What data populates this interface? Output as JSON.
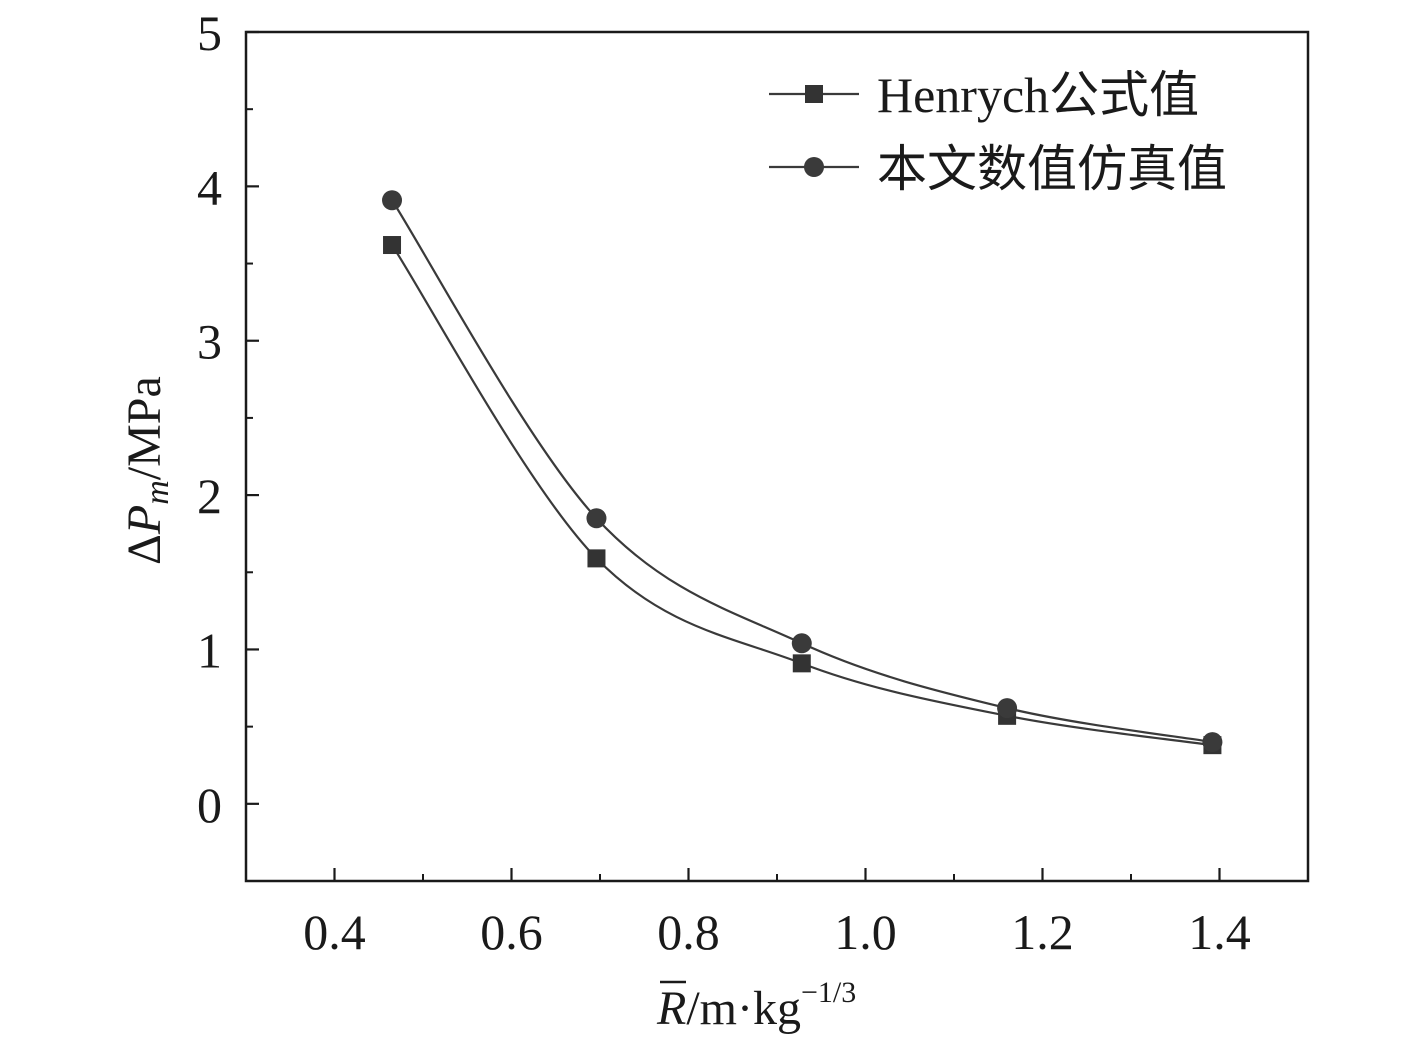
{
  "chart_data": {
    "type": "line",
    "title": "",
    "xlabel": {
      "base": "R",
      "unit": "/m·kg",
      "sup": "−1/3"
    },
    "ylabel": {
      "delta": "Δ",
      "var": "P",
      "sub": "m",
      "unit": "/MPa"
    },
    "xlim": [
      0.3,
      1.5
    ],
    "ylim": [
      -0.5,
      5
    ],
    "xticks": [
      0.4,
      0.6,
      0.8,
      1.0,
      1.2,
      1.4
    ],
    "xtick_labels": [
      "0.4",
      "0.6",
      "0.8",
      "1.0",
      "1.2",
      "1.4"
    ],
    "yticks": [
      0,
      1,
      2,
      3,
      4,
      5
    ],
    "ytick_labels": [
      "0",
      "1",
      "2",
      "3",
      "4",
      "5"
    ],
    "x_minor_step": 0.1,
    "y_minor_step": 0.5,
    "grid": false,
    "legend_position": "top-right",
    "series": [
      {
        "name": "Henrych公式值",
        "marker": "square",
        "color": "#3a3a3a",
        "x": [
          0.465,
          0.696,
          0.928,
          1.16,
          1.392
        ],
        "y": [
          3.62,
          1.59,
          0.91,
          0.57,
          0.38
        ]
      },
      {
        "name": "本文数值仿真值",
        "marker": "circle",
        "color": "#3a3a3a",
        "x": [
          0.465,
          0.696,
          0.928,
          1.16,
          1.392
        ],
        "y": [
          3.91,
          1.85,
          1.04,
          0.62,
          0.4
        ]
      }
    ]
  }
}
